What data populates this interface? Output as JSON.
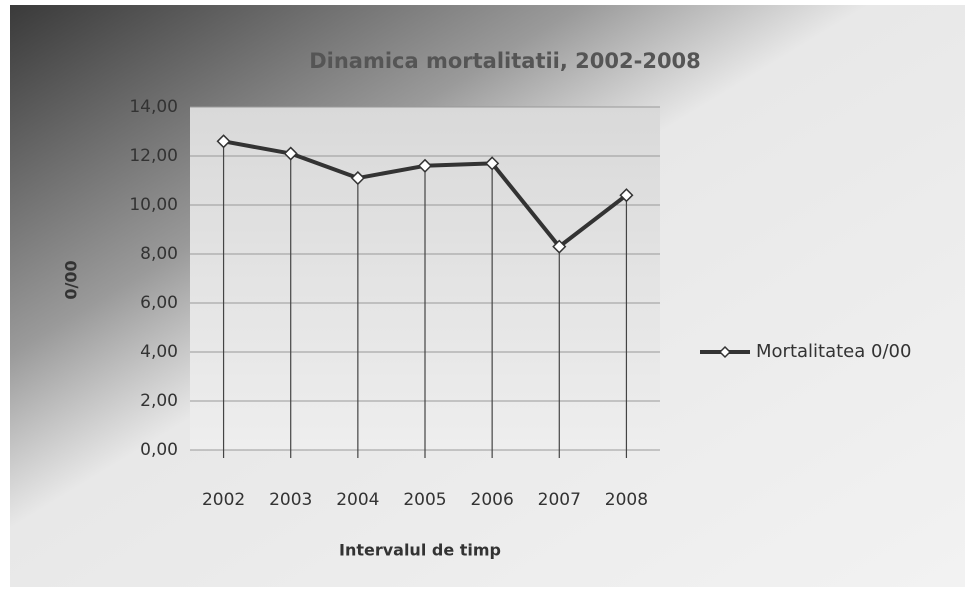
{
  "chart_data": {
    "type": "line",
    "title": "Dinamica mortalitatii, 2002-2008",
    "x_label": "Intervalul de timp",
    "y_label": "0/00",
    "categories": [
      "2002",
      "2003",
      "2004",
      "2005",
      "2006",
      "2007",
      "2008"
    ],
    "series": [
      {
        "name": "Mortalitatea 0/00",
        "color": "#333333",
        "values": [
          12.6,
          12.1,
          11.1,
          11.6,
          11.7,
          8.3,
          10.4
        ]
      }
    ],
    "ylim": [
      0,
      14
    ],
    "yticks": [
      {
        "value": 0,
        "label": "0,00"
      },
      {
        "value": 2,
        "label": "2,00"
      },
      {
        "value": 4,
        "label": "4,00"
      },
      {
        "value": 6,
        "label": "6,00"
      },
      {
        "value": 8,
        "label": "8,00"
      },
      {
        "value": 10,
        "label": "10,00"
      },
      {
        "value": 12,
        "label": "12,00"
      },
      {
        "value": 14,
        "label": "14,00"
      }
    ],
    "grid": true,
    "drop_lines": true,
    "legend": "right"
  }
}
